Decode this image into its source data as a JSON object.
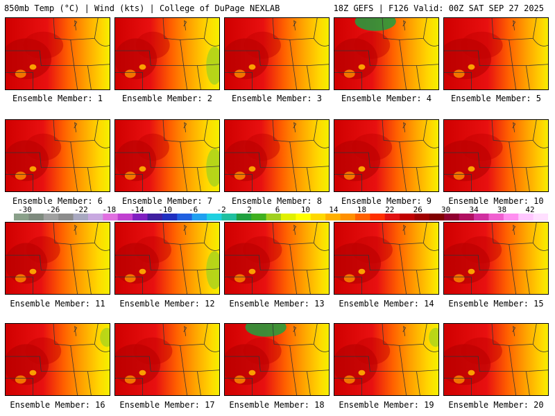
{
  "header": {
    "left": "850mb Temp (°C) | Wind (kts) | College of DuPage NEXLAB",
    "right": "18Z GEFS | F126 Valid: 00Z SAT SEP 27 2025"
  },
  "members": [
    {
      "label": "Ensemble Member: 1",
      "warm": 0.75
    },
    {
      "label": "Ensemble Member: 2",
      "warm": 0.45
    },
    {
      "label": "Ensemble Member: 3",
      "warm": 0.6
    },
    {
      "label": "Ensemble Member: 4",
      "warm": 0.55
    },
    {
      "label": "Ensemble Member: 5",
      "warm": 0.85
    },
    {
      "label": "Ensemble Member: 6",
      "warm": 0.55
    },
    {
      "label": "Ensemble Member: 7",
      "warm": 0.4
    },
    {
      "label": "Ensemble Member: 8",
      "warm": 0.5
    },
    {
      "label": "Ensemble Member: 9",
      "warm": 0.75
    },
    {
      "label": "Ensemble Member: 10",
      "warm": 0.85
    },
    {
      "label": "Ensemble Member: 11",
      "warm": 0.45
    },
    {
      "label": "Ensemble Member: 12",
      "warm": 0.6
    },
    {
      "label": "Ensemble Member: 13",
      "warm": 0.7
    },
    {
      "label": "Ensemble Member: 14",
      "warm": 0.8
    },
    {
      "label": "Ensemble Member: 15",
      "warm": 0.75
    },
    {
      "label": "Ensemble Member: 16",
      "warm": 0.55
    },
    {
      "label": "Ensemble Member: 17",
      "warm": 0.7
    },
    {
      "label": "Ensemble Member: 18",
      "warm": 0.65
    },
    {
      "label": "Ensemble Member: 19",
      "warm": 0.55
    },
    {
      "label": "Ensemble Member: 20",
      "warm": 0.8
    }
  ],
  "colorbar": {
    "ticks": [
      "-30",
      "-26",
      "-22",
      "-18",
      "-14",
      "-10",
      "-6",
      "-2",
      "2",
      "6",
      "10",
      "14",
      "18",
      "22",
      "26",
      "30",
      "34",
      "38",
      "42"
    ],
    "colors": [
      "#8aa08a",
      "#7e8a7e",
      "#a0a0a0",
      "#8c8c8c",
      "#a8a8c0",
      "#c8a8e0",
      "#e070e0",
      "#c040d0",
      "#8020c0",
      "#4020a0",
      "#2030c0",
      "#2060e0",
      "#20a0f0",
      "#20d0e0",
      "#20c0a0",
      "#20a040",
      "#40b020",
      "#a0d020",
      "#e0f000",
      "#ffff00",
      "#ffd800",
      "#ffb000",
      "#ff9000",
      "#ff6000",
      "#ff3000",
      "#e01010",
      "#c00000",
      "#a00000",
      "#800000",
      "#900030",
      "#b01060",
      "#d030a0",
      "#f060d0",
      "#ff90f0",
      "#ffc8ff",
      "#ffe0ff"
    ]
  }
}
